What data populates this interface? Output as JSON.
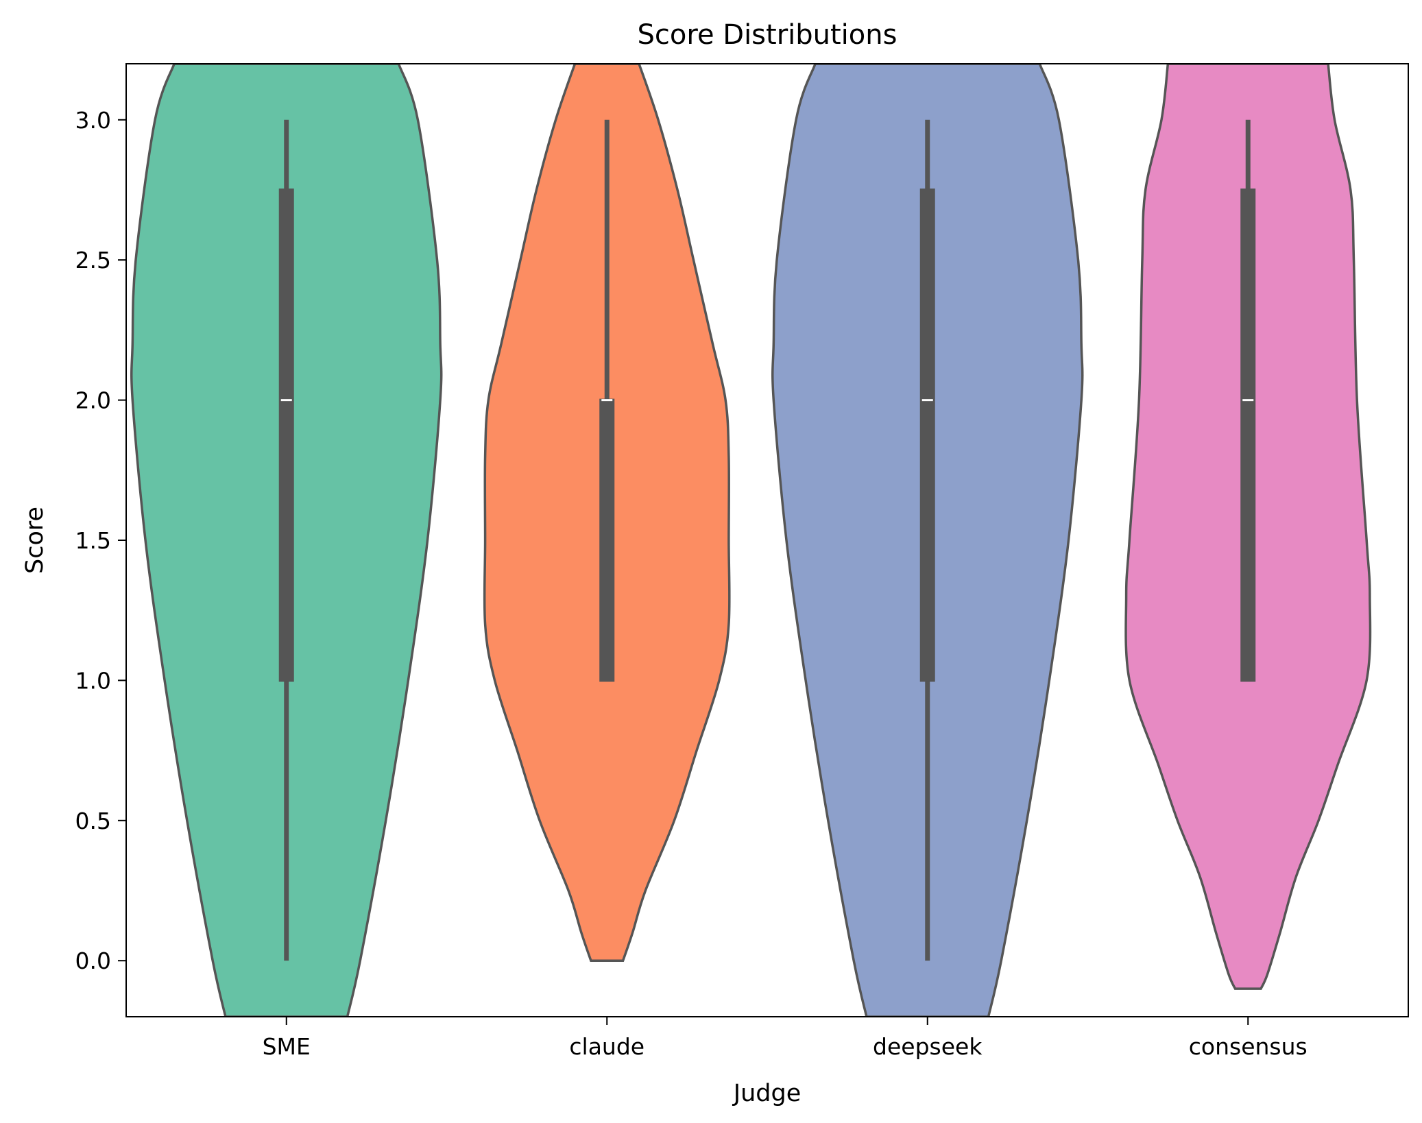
{
  "chart_data": {
    "type": "violin",
    "title": "Score Distributions",
    "xlabel": "Judge",
    "ylabel": "Score",
    "ylim": [
      -0.2,
      3.2
    ],
    "yticks": [
      "0.0",
      "0.5",
      "1.0",
      "1.5",
      "2.0",
      "2.5",
      "3.0"
    ],
    "yticks_values": [
      0.0,
      0.5,
      1.0,
      1.5,
      2.0,
      2.5,
      3.0
    ],
    "grid": false,
    "legend": "none",
    "categories": [
      "SME",
      "claude",
      "deepseek",
      "consensus"
    ],
    "colors": [
      "#66c2a5",
      "#fc8d62",
      "#8da0cb",
      "#e78ac3"
    ],
    "summary": [
      {
        "name": "SME",
        "min": 0.0,
        "q1": 1.0,
        "median": 2.0,
        "q3": 2.75,
        "max": 3.0
      },
      {
        "name": "claude",
        "min": 1.0,
        "q1": 1.0,
        "median": 2.0,
        "q3": 2.0,
        "max": 3.0
      },
      {
        "name": "deepseek",
        "min": 0.0,
        "q1": 1.0,
        "median": 2.0,
        "q3": 2.75,
        "max": 3.0
      },
      {
        "name": "consensus",
        "min": 1.0,
        "q1": 1.0,
        "median": 2.0,
        "q3": 2.75,
        "max": 3.0
      }
    ],
    "densities": [
      {
        "name": "SME",
        "y": [
          -0.2,
          0.0,
          0.5,
          1.0,
          1.5,
          2.0,
          2.2,
          2.5,
          3.0,
          3.2
        ],
        "half_width": [
          0.19,
          0.23,
          0.31,
          0.38,
          0.44,
          0.48,
          0.48,
          0.47,
          0.41,
          0.35
        ]
      },
      {
        "name": "claude",
        "y": [
          0.0,
          0.1,
          0.25,
          0.5,
          0.75,
          1.0,
          1.2,
          1.5,
          1.8,
          2.0,
          2.2,
          2.5,
          2.75,
          3.0,
          3.2
        ],
        "half_width": [
          0.05,
          0.08,
          0.12,
          0.21,
          0.28,
          0.35,
          0.38,
          0.38,
          0.38,
          0.37,
          0.33,
          0.27,
          0.22,
          0.16,
          0.1
        ]
      },
      {
        "name": "deepseek",
        "y": [
          -0.2,
          0.0,
          0.5,
          1.0,
          1.5,
          2.0,
          2.2,
          2.5,
          3.0,
          3.2
        ],
        "half_width": [
          0.19,
          0.23,
          0.31,
          0.38,
          0.44,
          0.48,
          0.48,
          0.47,
          0.41,
          0.35
        ]
      },
      {
        "name": "consensus",
        "y": [
          -0.1,
          -0.05,
          0.1,
          0.3,
          0.5,
          0.7,
          1.0,
          1.3,
          1.5,
          2.0,
          2.5,
          2.75,
          3.0,
          3.2
        ],
        "half_width": [
          0.04,
          0.06,
          0.1,
          0.15,
          0.22,
          0.28,
          0.37,
          0.38,
          0.37,
          0.34,
          0.33,
          0.32,
          0.27,
          0.25
        ]
      }
    ]
  }
}
